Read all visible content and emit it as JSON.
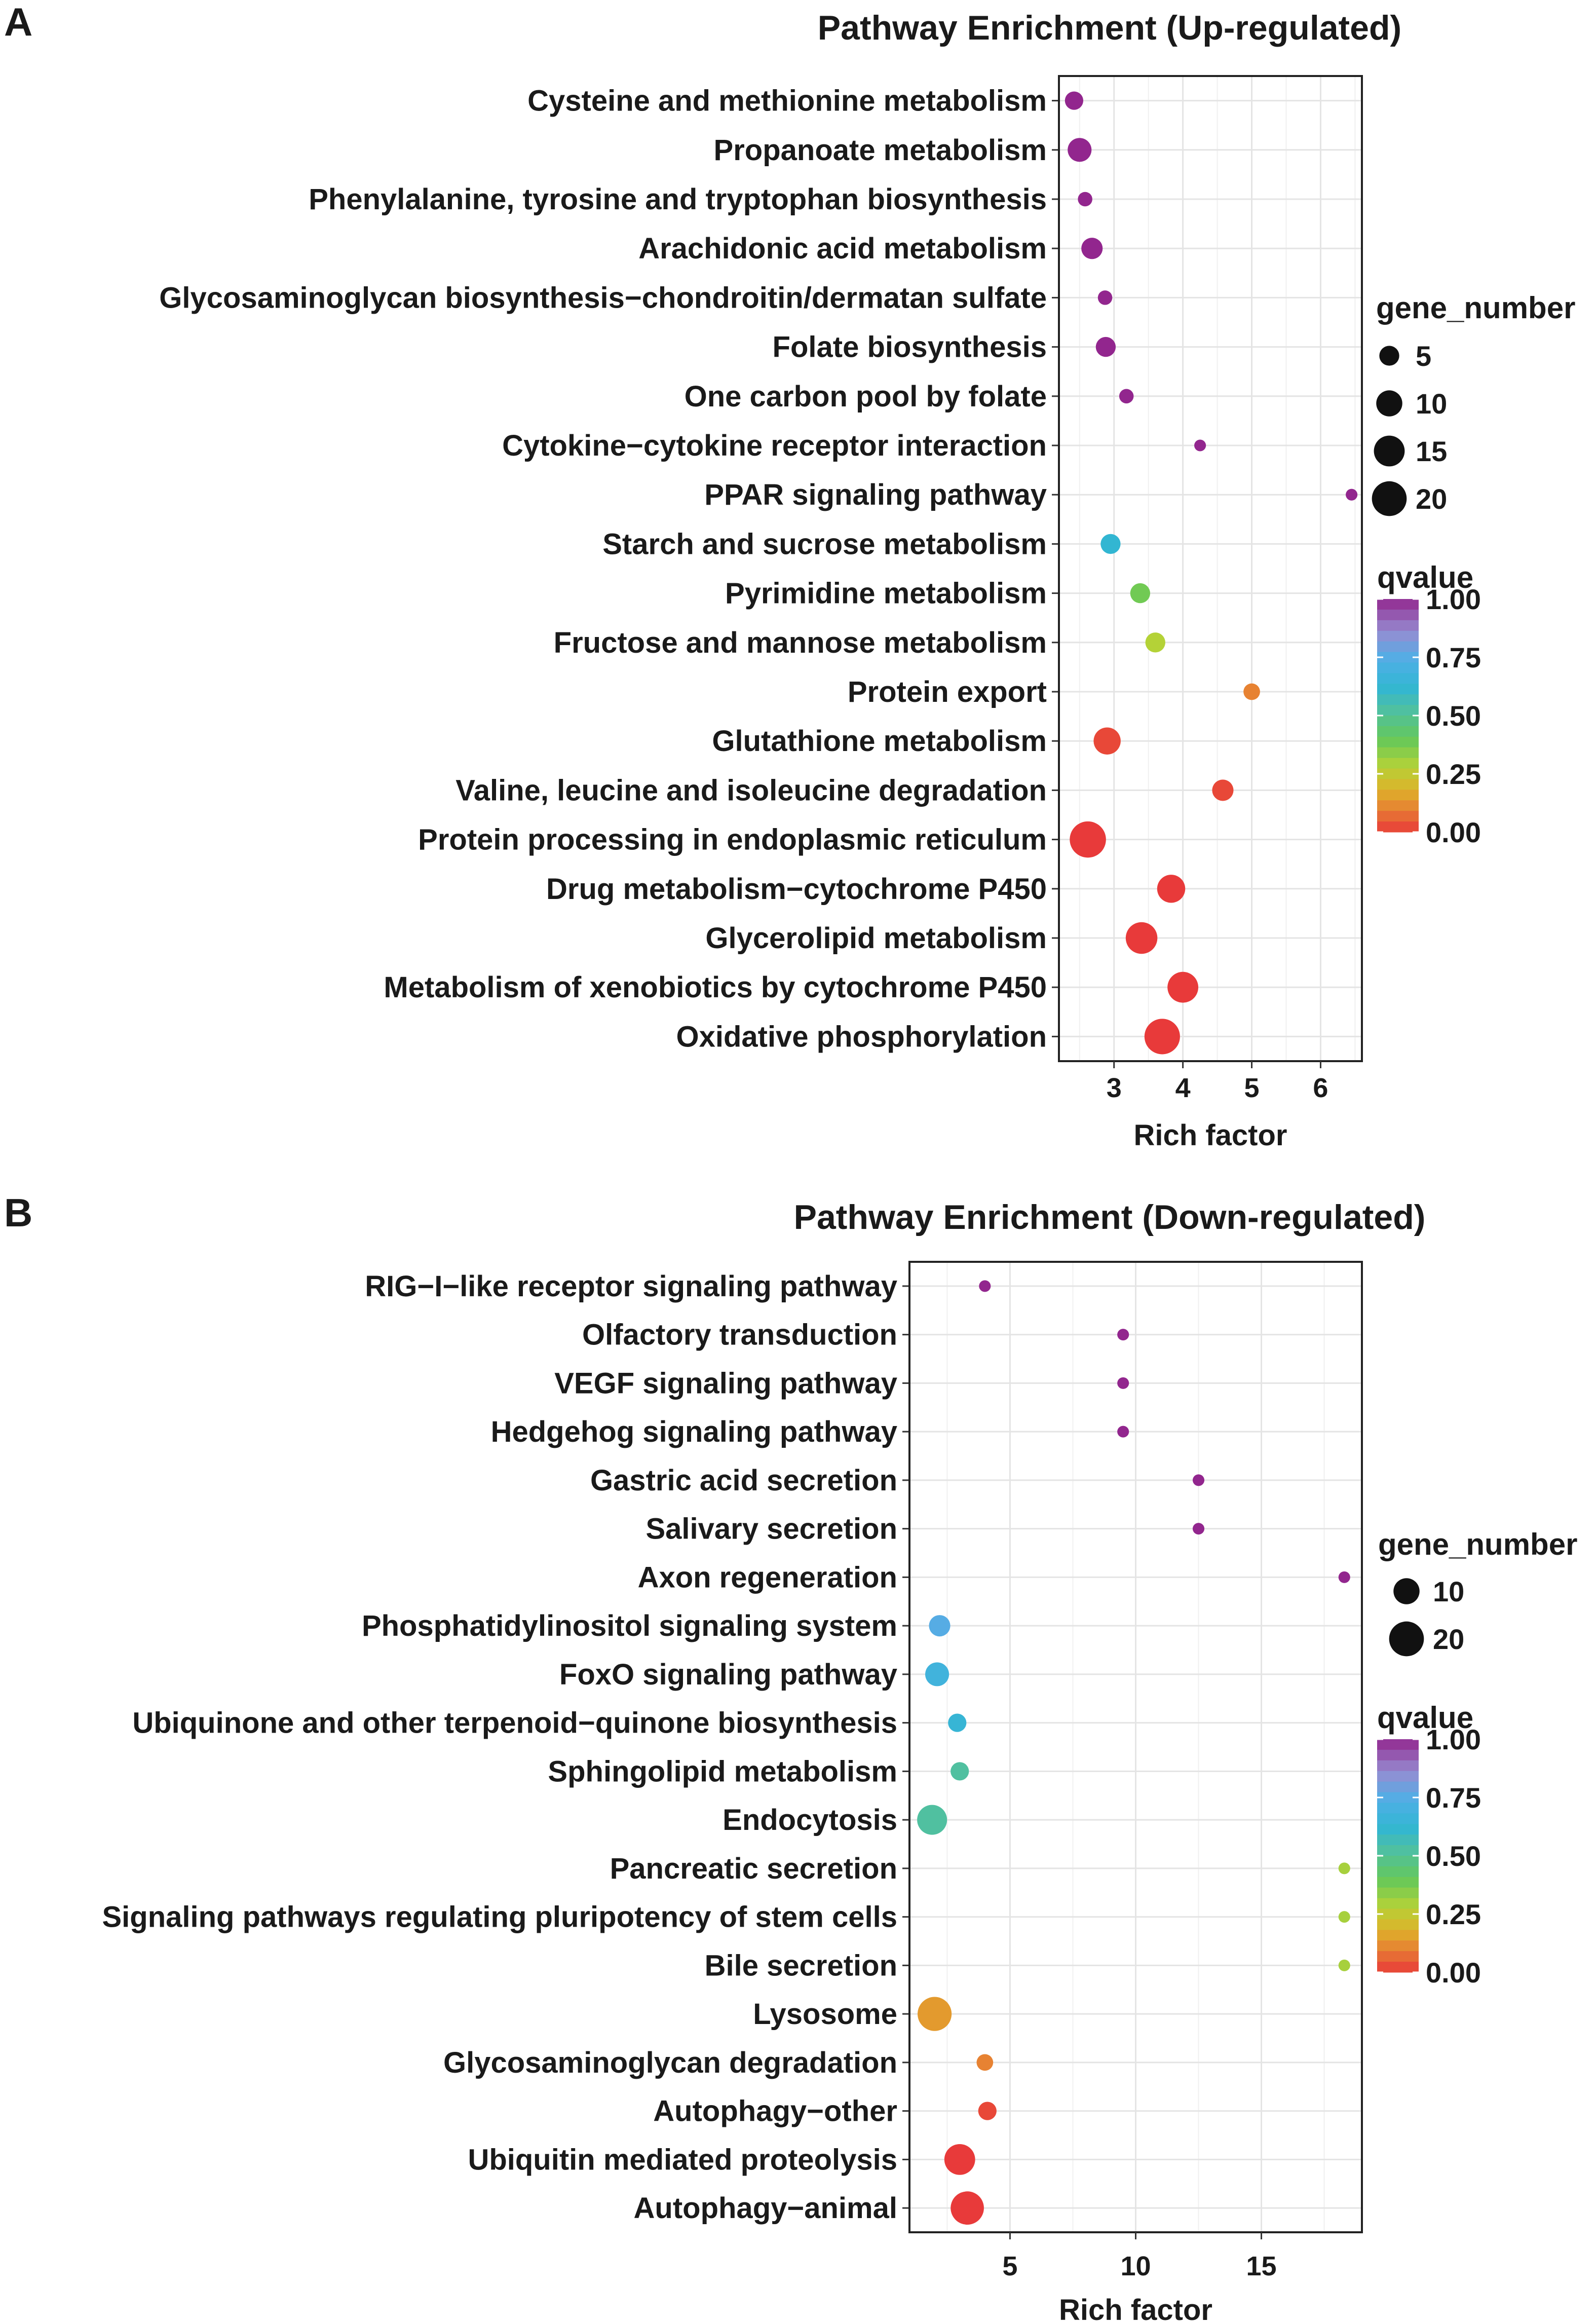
{
  "panel_labels": [
    "A",
    "B"
  ],
  "chart_data": [
    {
      "type": "scatter",
      "title": "Pathway Enrichment (Up-regulated)",
      "xlabel": "Rich factor",
      "ylabel": "",
      "xlim": [
        2.2,
        6.6
      ],
      "xticks": [
        3,
        4,
        5,
        6
      ],
      "grid": true,
      "size_legend": {
        "title": "gene_number",
        "values": [
          5,
          10,
          15,
          20
        ]
      },
      "color_legend": {
        "title": "qvalue",
        "ticks": [
          "1.00",
          "0.75",
          "0.50",
          "0.25",
          "0.00"
        ],
        "range": [
          0,
          1
        ]
      },
      "points": [
        {
          "pathway": "Cysteine and methionine metabolism",
          "rich_factor": 2.42,
          "gene_number": 4,
          "qvalue": 1.0
        },
        {
          "pathway": "Propanoate metabolism",
          "rich_factor": 2.5,
          "gene_number": 8,
          "qvalue": 1.0
        },
        {
          "pathway": "Phenylalanine, tyrosine and tryptophan biosynthesis",
          "rich_factor": 2.58,
          "gene_number": 2,
          "qvalue": 1.0
        },
        {
          "pathway": "Arachidonic acid metabolism",
          "rich_factor": 2.68,
          "gene_number": 6,
          "qvalue": 1.0
        },
        {
          "pathway": "Glycosaminoglycan biosynthesis−chondroitin/dermatan sulfate",
          "rich_factor": 2.87,
          "gene_number": 2,
          "qvalue": 1.0
        },
        {
          "pathway": "Folate biosynthesis",
          "rich_factor": 2.88,
          "gene_number": 5,
          "qvalue": 1.0
        },
        {
          "pathway": "One carbon pool by folate",
          "rich_factor": 3.18,
          "gene_number": 2,
          "qvalue": 1.0
        },
        {
          "pathway": "Cytokine−cytokine receptor interaction",
          "rich_factor": 4.25,
          "gene_number": 1,
          "qvalue": 1.0
        },
        {
          "pathway": "PPAR signaling pathway",
          "rich_factor": 6.45,
          "gene_number": 1,
          "qvalue": 1.0
        },
        {
          "pathway": "Starch and sucrose metabolism",
          "rich_factor": 2.95,
          "gene_number": 5,
          "qvalue": 0.62
        },
        {
          "pathway": "Pyrimidine metabolism",
          "rich_factor": 3.38,
          "gene_number": 5,
          "qvalue": 0.38
        },
        {
          "pathway": "Fructose and mannose metabolism",
          "rich_factor": 3.6,
          "gene_number": 5,
          "qvalue": 0.28
        },
        {
          "pathway": "Protein export",
          "rich_factor": 5.0,
          "gene_number": 3,
          "qvalue": 0.1
        },
        {
          "pathway": "Glutathione metabolism",
          "rich_factor": 2.9,
          "gene_number": 11,
          "qvalue": 0.02
        },
        {
          "pathway": "Valine, leucine and isoleucine degradation",
          "rich_factor": 4.58,
          "gene_number": 6,
          "qvalue": 0.02
        },
        {
          "pathway": "Protein processing in endoplasmic reticulum",
          "rich_factor": 2.62,
          "gene_number": 22,
          "qvalue": 0.0
        },
        {
          "pathway": "Drug metabolism−cytochrome P450",
          "rich_factor": 3.83,
          "gene_number": 12,
          "qvalue": 0.0
        },
        {
          "pathway": "Glycerolipid metabolism",
          "rich_factor": 3.4,
          "gene_number": 16,
          "qvalue": 0.0
        },
        {
          "pathway": "Metabolism of xenobiotics by cytochrome P450",
          "rich_factor": 4.0,
          "gene_number": 15,
          "qvalue": 0.0
        },
        {
          "pathway": "Oxidative phosphorylation",
          "rich_factor": 3.7,
          "gene_number": 21,
          "qvalue": 0.0
        }
      ]
    },
    {
      "type": "scatter",
      "title": "Pathway Enrichment (Down-regulated)",
      "xlabel": "Rich factor",
      "ylabel": "",
      "xlim": [
        1.0,
        19.0
      ],
      "xticks": [
        5,
        10,
        15
      ],
      "grid": true,
      "size_legend": {
        "title": "gene_number",
        "values": [
          10,
          20
        ]
      },
      "color_legend": {
        "title": "qvalue",
        "ticks": [
          "1.00",
          "0.75",
          "0.50",
          "0.25",
          "0.00"
        ],
        "range": [
          0,
          1
        ]
      },
      "points": [
        {
          "pathway": "RIG−I−like receptor signaling pathway",
          "rich_factor": 4.0,
          "gene_number": 1,
          "qvalue": 1.0
        },
        {
          "pathway": "Olfactory transduction",
          "rich_factor": 9.5,
          "gene_number": 1,
          "qvalue": 1.0
        },
        {
          "pathway": "VEGF signaling pathway",
          "rich_factor": 9.5,
          "gene_number": 1,
          "qvalue": 1.0
        },
        {
          "pathway": "Hedgehog signaling pathway",
          "rich_factor": 9.5,
          "gene_number": 1,
          "qvalue": 1.0
        },
        {
          "pathway": "Gastric acid secretion",
          "rich_factor": 12.5,
          "gene_number": 1,
          "qvalue": 1.0
        },
        {
          "pathway": "Salivary secretion",
          "rich_factor": 12.5,
          "gene_number": 1,
          "qvalue": 1.0
        },
        {
          "pathway": "Axon regeneration",
          "rich_factor": 18.3,
          "gene_number": 1,
          "qvalue": 1.0
        },
        {
          "pathway": "Phosphatidylinositol signaling system",
          "rich_factor": 2.2,
          "gene_number": 6,
          "qvalue": 0.75
        },
        {
          "pathway": "FoxO signaling pathway",
          "rich_factor": 2.1,
          "gene_number": 8,
          "qvalue": 0.68
        },
        {
          "pathway": "Ubiquinone and other terpenoid−quinone biosynthesis",
          "rich_factor": 2.9,
          "gene_number": 4,
          "qvalue": 0.64
        },
        {
          "pathway": "Sphingolipid metabolism",
          "rich_factor": 3.0,
          "gene_number": 4,
          "qvalue": 0.52
        },
        {
          "pathway": "Endocytosis",
          "rich_factor": 1.9,
          "gene_number": 14,
          "qvalue": 0.52
        },
        {
          "pathway": "Pancreatic secretion",
          "rich_factor": 18.3,
          "gene_number": 1,
          "qvalue": 0.3
        },
        {
          "pathway": "Signaling pathways regulating pluripotency of stem cells",
          "rich_factor": 18.3,
          "gene_number": 1,
          "qvalue": 0.3
        },
        {
          "pathway": "Bile secretion",
          "rich_factor": 18.3,
          "gene_number": 1,
          "qvalue": 0.3
        },
        {
          "pathway": "Lysosome",
          "rich_factor": 2.0,
          "gene_number": 19,
          "qvalue": 0.14
        },
        {
          "pathway": "Glycosaminoglycan degradation",
          "rich_factor": 4.0,
          "gene_number": 3,
          "qvalue": 0.1
        },
        {
          "pathway": "Autophagy−other",
          "rich_factor": 4.1,
          "gene_number": 4,
          "qvalue": 0.02
        },
        {
          "pathway": "Ubiquitin mediated proteolysis",
          "rich_factor": 3.0,
          "gene_number": 15,
          "qvalue": 0.0
        },
        {
          "pathway": "Autophagy−animal",
          "rich_factor": 3.3,
          "gene_number": 18,
          "qvalue": 0.0
        }
      ]
    }
  ]
}
